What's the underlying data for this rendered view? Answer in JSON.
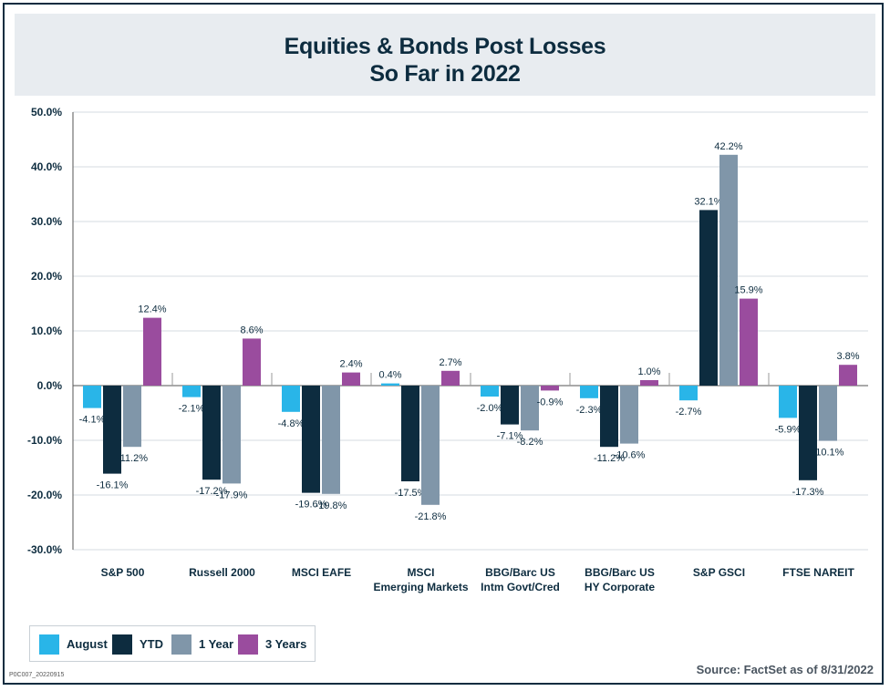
{
  "chart_data": {
    "type": "bar",
    "title": "Equities & Bonds Post Losses",
    "subtitle": "So Far in 2022",
    "categories": [
      [
        "S&P 500"
      ],
      [
        "Russell 2000"
      ],
      [
        "MSCI EAFE"
      ],
      [
        "MSCI",
        "Emerging Markets"
      ],
      [
        "BBG/Barc US",
        "Intm Govt/Cred"
      ],
      [
        "BBG/Barc US",
        "HY Corporate"
      ],
      [
        "S&P GSCI"
      ],
      [
        "FTSE NAREIT"
      ]
    ],
    "series": [
      {
        "name": "August",
        "color": "#29b5e8",
        "values": [
          -4.1,
          -2.1,
          -4.8,
          0.4,
          -2.0,
          -2.3,
          -2.7,
          -5.9
        ],
        "labels": [
          "-4.1%",
          "-2.1%",
          "-4.8%",
          "0.4%",
          "-2.0%",
          "-2.3%",
          "-2.7%",
          "-5.9%"
        ]
      },
      {
        "name": "YTD",
        "color": "#0d2c3f",
        "values": [
          -16.1,
          -17.2,
          -19.6,
          -17.5,
          -7.1,
          -11.2,
          32.1,
          -17.3
        ],
        "labels": [
          "-16.1%",
          "-17.2%",
          "-19.6%",
          "-17.5%",
          "-7.1%",
          "-11.2%",
          "32.1%",
          "-17.3%"
        ]
      },
      {
        "name": "1 Year",
        "color": "#8096a9",
        "values": [
          -11.2,
          -17.9,
          -19.8,
          -21.8,
          -8.2,
          -10.6,
          42.2,
          -10.1
        ],
        "labels": [
          "-11.2%",
          "-17.9%",
          "-19.8%",
          "-21.8%",
          "-8.2%",
          "-10.6%",
          "42.2%",
          "-10.1%"
        ]
      },
      {
        "name": "3 Years",
        "color": "#9a4c9e",
        "values": [
          12.4,
          8.6,
          2.4,
          2.7,
          -0.9,
          1.0,
          15.9,
          3.8
        ],
        "labels": [
          "12.4%",
          "8.6%",
          "2.4%",
          "2.7%",
          "-0.9%",
          "1.0%",
          "15.9%",
          "3.8%"
        ]
      }
    ],
    "ylim": [
      -30,
      50
    ],
    "yticks": [
      50,
      40,
      30,
      20,
      10,
      0,
      -10,
      -20,
      -30
    ],
    "ytick_labels": [
      "50.0%",
      "40.0%",
      "30.0%",
      "20.0%",
      "10.0%",
      "0.0%",
      "-10.0%",
      "-20.0%",
      "-30.0%"
    ],
    "grid": true,
    "legend": "bottom-left"
  },
  "footer": {
    "source": "Source: FactSet as of 8/31/2022",
    "code": "P0C007_20220915"
  }
}
